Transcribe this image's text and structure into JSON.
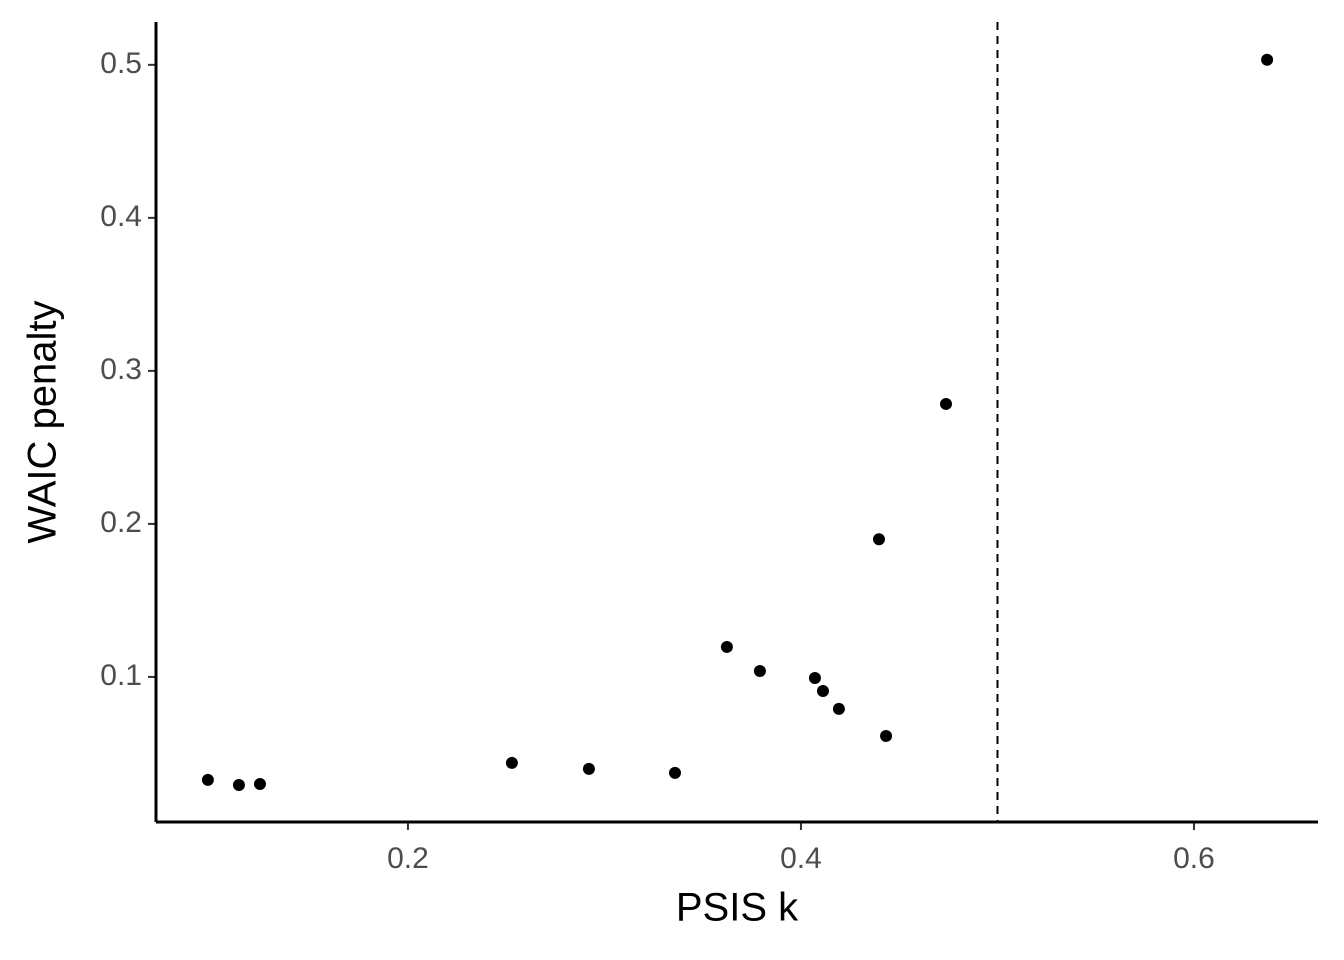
{
  "chart_data": {
    "type": "scatter",
    "x_label": "PSIS k",
    "y_label": "WAIC penalty",
    "x": [
      0.0982,
      0.114,
      0.1247,
      0.2529,
      0.2921,
      0.3359,
      0.3623,
      0.3791,
      0.4071,
      0.4112,
      0.4193,
      0.4397,
      0.4433,
      0.4738,
      0.6372
    ],
    "values": [
      0.0327,
      0.0294,
      0.03,
      0.0438,
      0.0399,
      0.0373,
      0.1196,
      0.1039,
      0.0993,
      0.0908,
      0.0791,
      0.19,
      0.0614,
      0.2784,
      0.5033
    ],
    "color": "#000000",
    "xlim": [
      0.0718,
      0.6631
    ],
    "ylim": [
      0.0052,
      0.528
    ],
    "xticks": [
      0.2,
      0.4,
      0.6
    ],
    "yticks": [
      0.1,
      0.2,
      0.3,
      0.4,
      0.5
    ],
    "vline": 0.5,
    "grid": false
  }
}
